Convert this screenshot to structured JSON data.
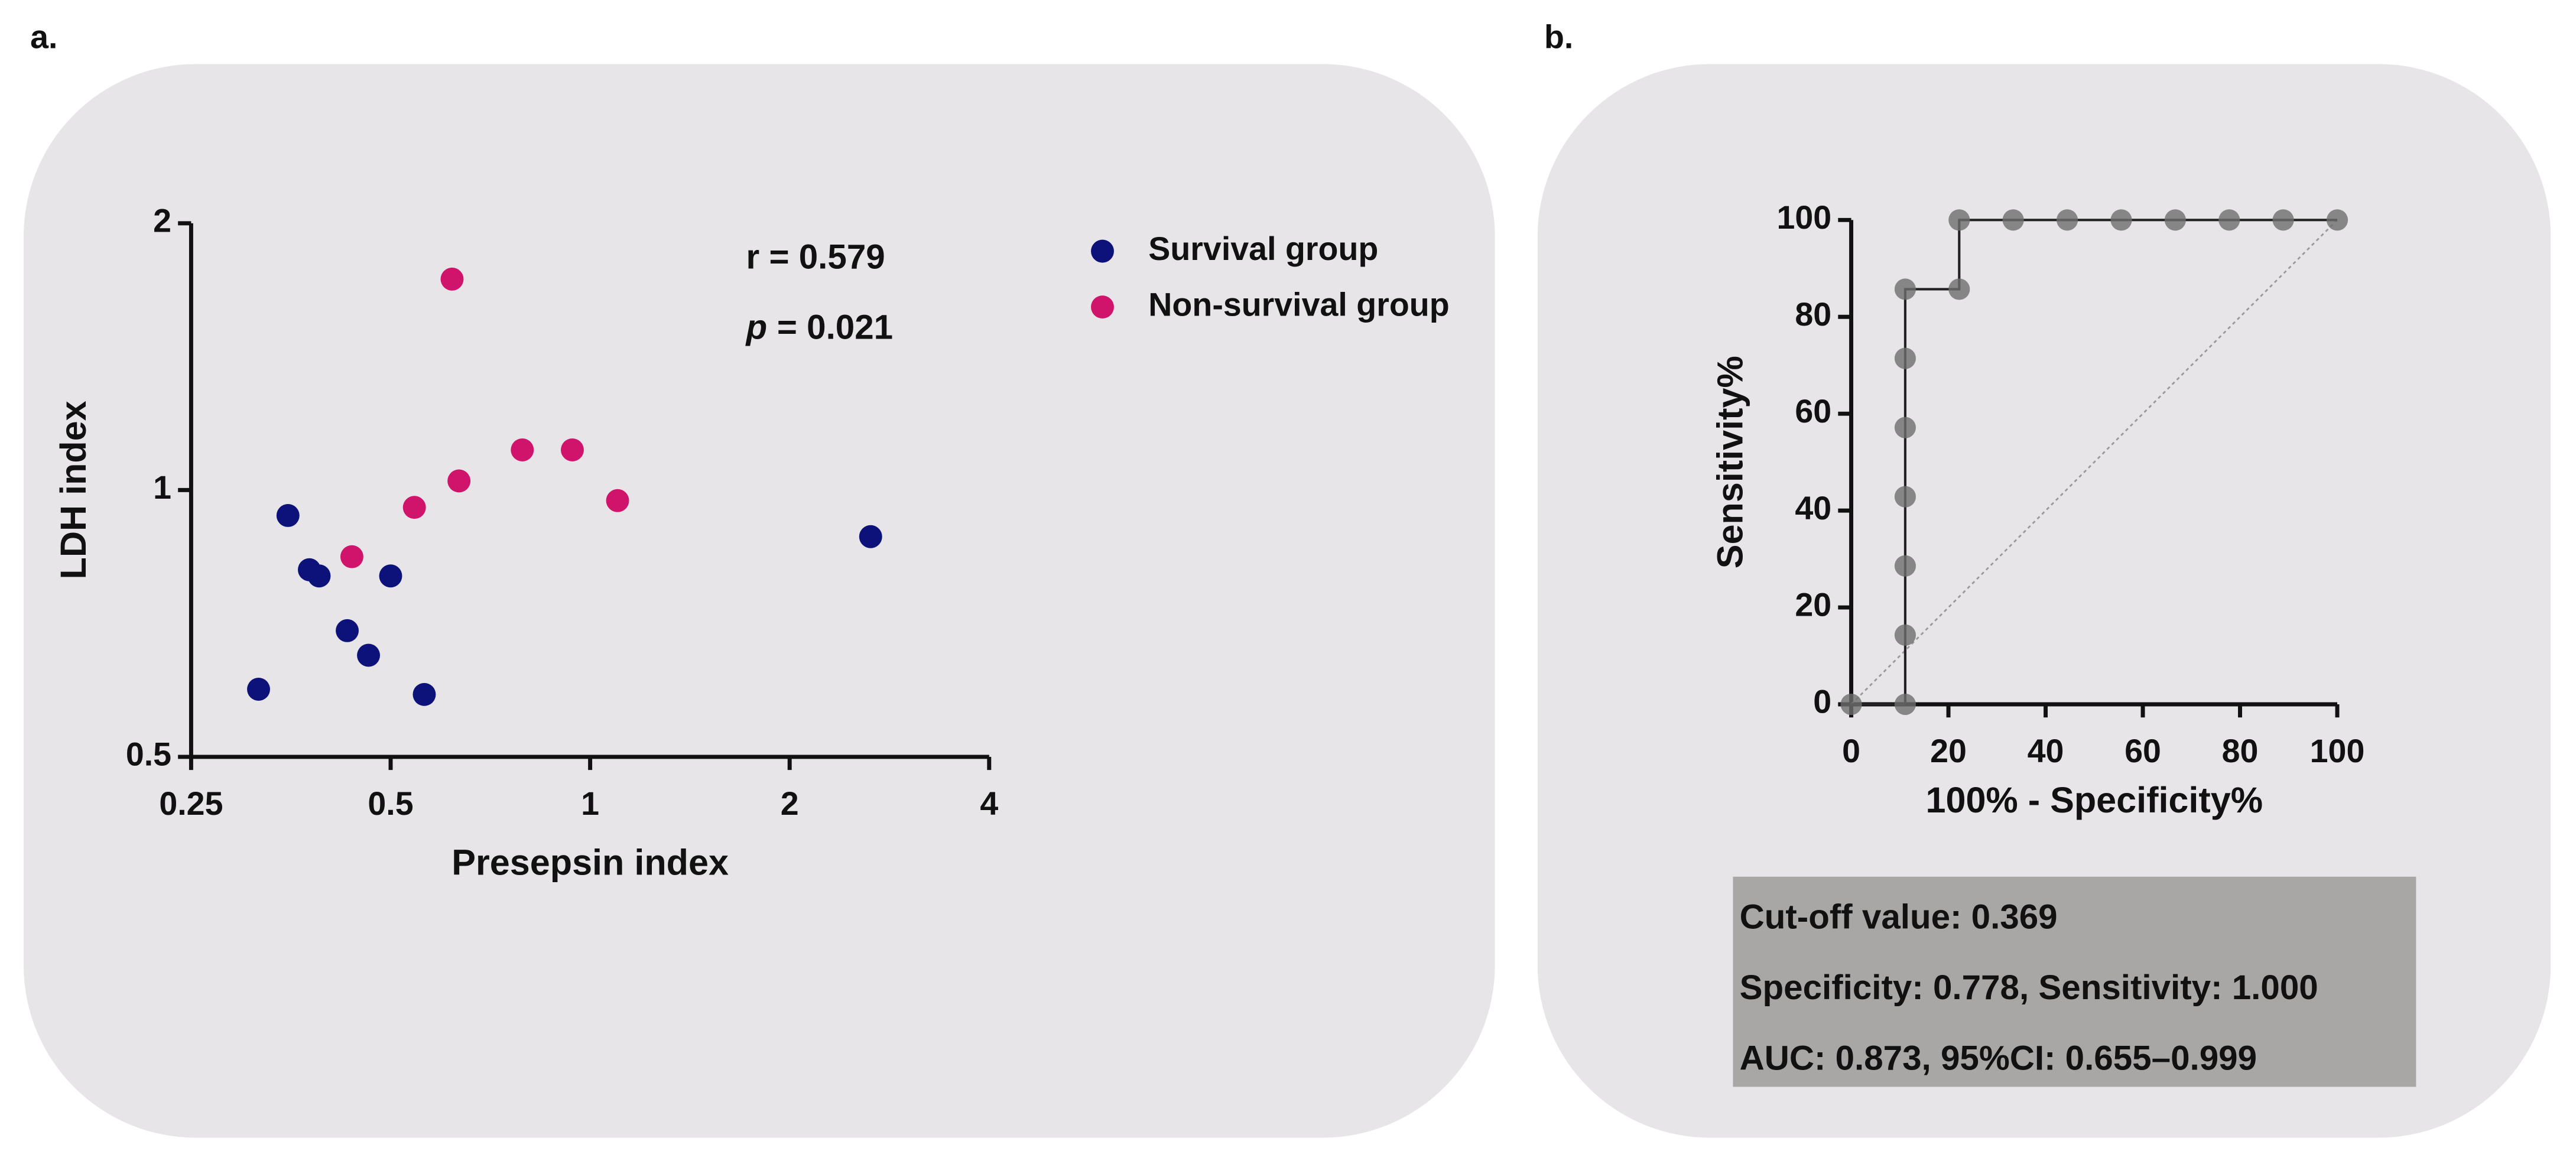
{
  "panels": [
    "a.",
    "b."
  ],
  "chart_data": [
    {
      "type": "scatter",
      "xlabel": "Presepsin index",
      "ylabel": "LDH index",
      "xscale": "log",
      "yscale": "log",
      "xlim": [
        0.25,
        4
      ],
      "xticks": [
        0.25,
        0.5,
        1,
        2,
        4
      ],
      "ylim": [
        0.5,
        2
      ],
      "yticks": [
        0.5,
        1,
        2
      ],
      "annotations": [
        "r = 0.579",
        [
          "p",
          "= 0.021"
        ]
      ],
      "legend": "top-right",
      "series": [
        {
          "name": "Survival group",
          "color": "#0c127a",
          "x": [
            0.35,
            0.377,
            0.39,
            0.5,
            0.43,
            0.463,
            0.316,
            0.562,
            2.65
          ],
          "values": [
            0.936,
            0.813,
            0.8,
            0.8,
            0.694,
            0.651,
            0.596,
            0.588,
            0.886
          ]
        },
        {
          "name": "Non-survival group",
          "color": "#d0136b",
          "x": [
            0.619,
            0.437,
            0.543,
            0.634,
            0.79,
            0.94,
            1.1
          ],
          "values": [
            1.73,
            0.841,
            0.956,
            1.024,
            1.11,
            1.11,
            0.973
          ]
        }
      ]
    },
    {
      "type": "line",
      "xlabel": "100% - Specificity%",
      "ylabel": "Sensitivity%",
      "xlim": [
        0,
        100
      ],
      "xticks": [
        0,
        20,
        40,
        60,
        80,
        100
      ],
      "ylim": [
        0,
        100
      ],
      "yticks": [
        0,
        20,
        40,
        60,
        80,
        100
      ],
      "color": "#6e6e6e",
      "x": [
        0,
        11.11,
        11.11,
        11.11,
        11.11,
        11.11,
        11.11,
        11.11,
        22.22,
        22.22,
        33.33,
        44.44,
        55.56,
        66.67,
        77.78,
        88.89,
        100
      ],
      "values": [
        0,
        0,
        14.29,
        28.57,
        42.86,
        57.14,
        71.43,
        85.71,
        85.71,
        100,
        100,
        100,
        100,
        100,
        100,
        100,
        100
      ],
      "stats": [
        "Cut-off value: 0.369",
        "Specificity: 0.778, Sensitivity: 1.000",
        "AUC: 0.873, 95%CI: 0.655–0.999"
      ]
    }
  ]
}
